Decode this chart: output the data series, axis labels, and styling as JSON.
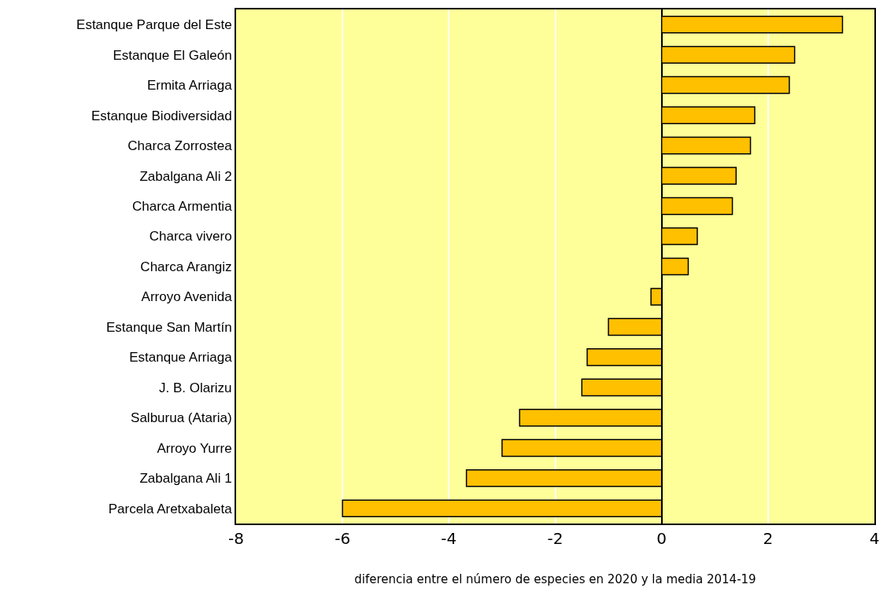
{
  "chart_data": {
    "type": "bar",
    "orientation": "horizontal",
    "xlabel": "diferencia entre el número de especies en 2020 y la media 2014-19",
    "categories": [
      "Estanque Parque del Este",
      "Estanque El Galeón",
      "Ermita Arriaga",
      "Estanque Biodiversidad",
      "Charca Zorrostea",
      "Zabalgana Ali 2",
      "Charca Armentia",
      "Charca vivero",
      "Charca Arangiz",
      "Arroyo Avenida",
      "Estanque San Martín",
      "Estanque Arriaga",
      "J. B. Olarizu",
      "Salburua (Ataria)",
      "Arroyo Yurre",
      "Zabalgana Ali 1",
      "Parcela Aretxabaleta"
    ],
    "values": [
      3.4,
      2.5,
      2.4,
      1.75,
      1.67,
      1.4,
      1.33,
      0.67,
      0.5,
      -0.2,
      -1.0,
      -1.4,
      -1.5,
      -2.67,
      -3.0,
      -3.67,
      -6.0
    ],
    "color": "#ffc000",
    "xlim": [
      -8,
      4
    ],
    "xticks": [
      -8,
      -6,
      -4,
      -2,
      0,
      2,
      4
    ],
    "grid": "x"
  }
}
